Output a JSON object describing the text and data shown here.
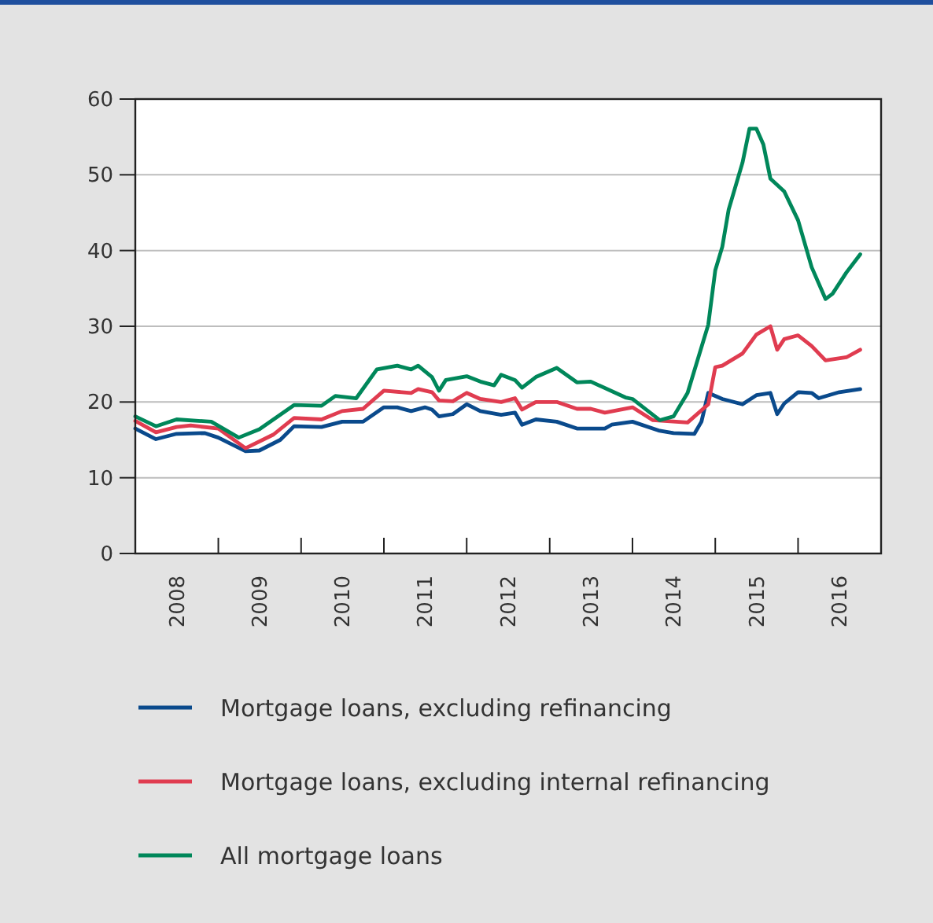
{
  "chart_data": {
    "type": "line",
    "xlim": [
      "2008-01",
      "2017-01"
    ],
    "ylim": [
      0,
      60
    ],
    "yticks": [
      0,
      10,
      20,
      30,
      40,
      50,
      60
    ],
    "xticks": [
      {
        "value": "2008-07",
        "label": "2008"
      },
      {
        "value": "2009-01",
        "label": null
      },
      {
        "value": "2009-07",
        "label": "2009"
      },
      {
        "value": "2010-01",
        "label": null
      },
      {
        "value": "2010-07",
        "label": "2010"
      },
      {
        "value": "2011-01",
        "label": null
      },
      {
        "value": "2011-07",
        "label": "2011"
      },
      {
        "value": "2012-01",
        "label": null
      },
      {
        "value": "2012-07",
        "label": "2012"
      },
      {
        "value": "2013-01",
        "label": null
      },
      {
        "value": "2013-07",
        "label": "2013"
      },
      {
        "value": "2014-01",
        "label": null
      },
      {
        "value": "2014-07",
        "label": "2014"
      },
      {
        "value": "2015-01",
        "label": null
      },
      {
        "value": "2015-07",
        "label": "2015"
      },
      {
        "value": "2016-01",
        "label": null
      },
      {
        "value": "2016-07",
        "label": "2016"
      }
    ],
    "grid": "y",
    "legend": "bottom",
    "marker": "none",
    "line_style": "solid",
    "series": [
      {
        "name": "Mortgage loans, excluding refinancing",
        "color": "#0a4a8c",
        "x": [
          "2008-01",
          "2008-04",
          "2008-07",
          "2008-11",
          "2009-01",
          "2009-05",
          "2009-07",
          "2009-10",
          "2009-12",
          "2010-04",
          "2010-07",
          "2010-10",
          "2011-01",
          "2011-03",
          "2011-05",
          "2011-07",
          "2011-08",
          "2011-09",
          "2011-11",
          "2012-01",
          "2012-03",
          "2012-06",
          "2012-08",
          "2012-09",
          "2012-11",
          "2013-02",
          "2013-05",
          "2013-09",
          "2013-10",
          "2014-01",
          "2014-05",
          "2014-07",
          "2014-10",
          "2014-11",
          "2014-12",
          "2015-02",
          "2015-05",
          "2015-07",
          "2015-09",
          "2015-10",
          "2015-11",
          "2016-01",
          "2016-03",
          "2016-04",
          "2016-07",
          "2016-10"
        ],
        "values": [
          16.5,
          15.1,
          15.8,
          15.9,
          15.3,
          13.5,
          13.6,
          15.0,
          16.8,
          16.7,
          17.4,
          17.4,
          19.3,
          19.3,
          18.8,
          19.3,
          19.0,
          18.1,
          18.4,
          19.7,
          18.8,
          18.3,
          18.6,
          17.0,
          17.7,
          17.4,
          16.5,
          16.5,
          17.0,
          17.4,
          16.2,
          15.9,
          15.8,
          17.4,
          21.2,
          20.4,
          19.7,
          20.9,
          21.2,
          18.4,
          19.8,
          21.3,
          21.2,
          20.5,
          21.3,
          21.7
        ]
      },
      {
        "name": "Mortgage loans, excluding internal refinancing",
        "color": "#e03c50",
        "x": [
          "2008-01",
          "2008-04",
          "2008-07",
          "2008-09",
          "2009-01",
          "2009-05",
          "2009-09",
          "2009-12",
          "2010-04",
          "2010-07",
          "2010-10",
          "2011-01",
          "2011-05",
          "2011-06",
          "2011-08",
          "2011-09",
          "2011-11",
          "2012-01",
          "2012-03",
          "2012-06",
          "2012-08",
          "2012-09",
          "2012-11",
          "2013-02",
          "2013-05",
          "2013-07",
          "2013-09",
          "2014-01",
          "2014-04",
          "2014-09",
          "2014-12",
          "2015-01",
          "2015-02",
          "2015-05",
          "2015-07",
          "2015-09",
          "2015-10",
          "2015-11",
          "2016-01",
          "2016-03",
          "2016-05",
          "2016-08",
          "2016-10"
        ],
        "values": [
          17.5,
          16.0,
          16.7,
          16.9,
          16.5,
          13.9,
          15.7,
          17.9,
          17.7,
          18.8,
          19.1,
          21.5,
          21.2,
          21.7,
          21.3,
          20.2,
          20.1,
          21.2,
          20.4,
          20.0,
          20.5,
          19.0,
          20.0,
          20.0,
          19.1,
          19.1,
          18.6,
          19.3,
          17.6,
          17.3,
          19.7,
          24.6,
          24.8,
          26.4,
          28.9,
          30.0,
          26.9,
          28.3,
          28.8,
          27.4,
          25.5,
          25.9,
          26.9
        ]
      },
      {
        "name": "All mortgage loans",
        "color": "#00875a",
        "x": [
          "2008-01",
          "2008-04",
          "2008-07",
          "2008-12",
          "2009-04",
          "2009-07",
          "2009-12",
          "2010-04",
          "2010-06",
          "2010-09",
          "2010-12",
          "2011-03",
          "2011-05",
          "2011-06",
          "2011-08",
          "2011-09",
          "2011-10",
          "2012-01",
          "2012-03",
          "2012-05",
          "2012-06",
          "2012-08",
          "2012-09",
          "2012-11",
          "2013-02",
          "2013-05",
          "2013-07",
          "2013-12",
          "2014-01",
          "2014-05",
          "2014-07",
          "2014-09",
          "2014-12",
          "2015-01",
          "2015-02",
          "2015-03",
          "2015-05",
          "2015-06",
          "2015-07",
          "2015-08",
          "2015-09",
          "2015-11",
          "2016-01",
          "2016-03",
          "2016-05",
          "2016-06",
          "2016-08",
          "2016-10"
        ],
        "values": [
          18.1,
          16.8,
          17.7,
          17.4,
          15.3,
          16.4,
          19.6,
          19.5,
          20.8,
          20.5,
          24.3,
          24.8,
          24.3,
          24.8,
          23.3,
          21.5,
          22.9,
          23.4,
          22.7,
          22.2,
          23.6,
          22.9,
          21.9,
          23.3,
          24.5,
          22.6,
          22.7,
          20.6,
          20.4,
          17.6,
          18.1,
          21.2,
          30.2,
          37.4,
          40.5,
          45.4,
          51.6,
          56.1,
          56.1,
          54.0,
          49.5,
          47.8,
          44.0,
          37.8,
          33.6,
          34.3,
          37.1,
          39.5
        ]
      }
    ]
  }
}
